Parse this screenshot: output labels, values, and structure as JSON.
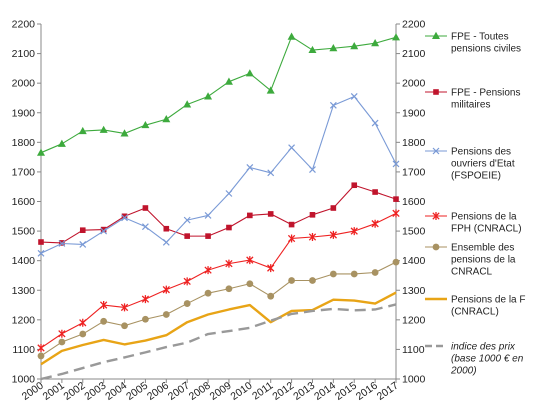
{
  "chart_data": {
    "type": "line",
    "title": "",
    "xlabel": "",
    "ylabel": "",
    "x": [
      2000,
      2001,
      2002,
      2003,
      2004,
      2005,
      2006,
      2007,
      2008,
      2009,
      2010,
      2011,
      2012,
      2013,
      2014,
      2015,
      2016,
      2017
    ],
    "ylim": [
      1000,
      2200
    ],
    "yticks": [
      1000,
      1100,
      1200,
      1300,
      1400,
      1500,
      1600,
      1700,
      1800,
      1900,
      2000,
      2100,
      2200
    ],
    "grid": false,
    "legend_position": "right",
    "y_axis_both_sides": true,
    "series": [
      {
        "name_lines": [
          "FPE - Toutes",
          "pensions civiles"
        ],
        "color": "#3daa3d",
        "marker": "triangle",
        "dash": "",
        "values": [
          1765,
          1795,
          1838,
          1842,
          1830,
          1858,
          1878,
          1928,
          1955,
          2005,
          2033,
          1975,
          2157,
          2112,
          2118,
          2125,
          2135,
          2155
        ]
      },
      {
        "name_lines": [
          "FPE - Pensions",
          "militaires"
        ],
        "color": "#c0142c",
        "marker": "square",
        "dash": "",
        "values": [
          1463,
          1460,
          1503,
          1505,
          1550,
          1578,
          1508,
          1483,
          1483,
          1512,
          1553,
          1558,
          1522,
          1555,
          1578,
          1655,
          1632,
          1608
        ]
      },
      {
        "name_lines": [
          "Pensions des",
          "ouvriers d'Etat",
          "(FSPOEIE)"
        ],
        "color": "#7a9ad6",
        "marker": "x",
        "dash": "",
        "values": [
          1425,
          1458,
          1455,
          1500,
          1545,
          1515,
          1462,
          1537,
          1553,
          1627,
          1715,
          1697,
          1782,
          1708,
          1925,
          1955,
          1865,
          1727
        ]
      },
      {
        "name_lines": [
          "Pensions de la",
          "FPH (CNRACL)"
        ],
        "color": "#ee2222",
        "marker": "star",
        "dash": "",
        "values": [
          1105,
          1153,
          1190,
          1250,
          1242,
          1270,
          1302,
          1330,
          1368,
          1390,
          1402,
          1375,
          1475,
          1480,
          1487,
          1500,
          1525,
          1560
        ]
      },
      {
        "name_lines": [
          "Ensemble des",
          "pensions de la",
          "CNRACL"
        ],
        "color": "#a89262",
        "marker": "circle",
        "dash": "",
        "values": [
          1078,
          1125,
          1152,
          1195,
          1180,
          1202,
          1218,
          1255,
          1290,
          1305,
          1322,
          1280,
          1333,
          1333,
          1355,
          1355,
          1360,
          1395
        ]
      },
      {
        "name_lines": [
          "Pensions de la F",
          "(CNRACL)"
        ],
        "color": "#e8a416",
        "marker": "none",
        "dash": "",
        "values": [
          1050,
          1095,
          1115,
          1132,
          1117,
          1130,
          1148,
          1192,
          1218,
          1235,
          1250,
          1192,
          1230,
          1233,
          1268,
          1265,
          1255,
          1292
        ]
      },
      {
        "name_lines": [
          "indice des prix",
          "(base 1000 € en",
          "2000)"
        ],
        "color": "#999999",
        "marker": "none",
        "dash": "11,6",
        "values": [
          1000,
          1017,
          1037,
          1057,
          1073,
          1090,
          1108,
          1123,
          1152,
          1162,
          1173,
          1197,
          1220,
          1230,
          1237,
          1232,
          1235,
          1252
        ]
      }
    ]
  }
}
